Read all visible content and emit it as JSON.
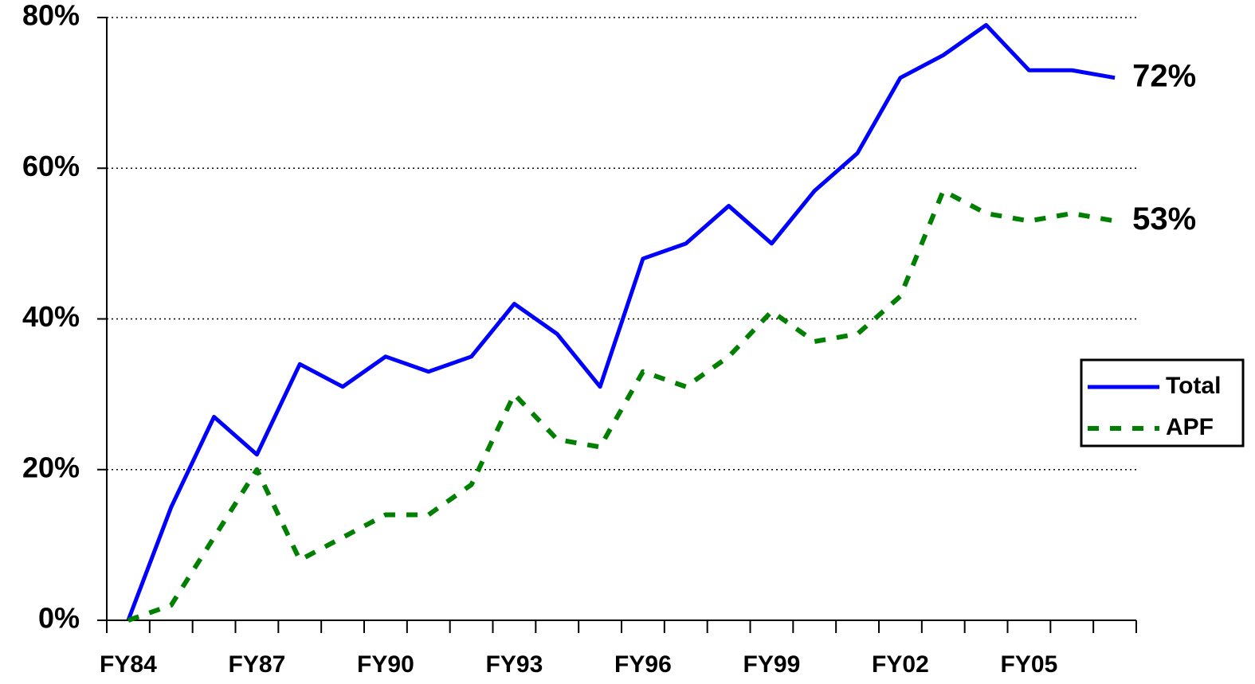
{
  "chart_data": {
    "type": "line",
    "categories": [
      "FY84",
      null,
      null,
      "FY87",
      null,
      null,
      "FY90",
      null,
      null,
      "FY93",
      null,
      null,
      "FY96",
      null,
      null,
      "FY99",
      null,
      null,
      "FY02",
      null,
      null,
      "FY05",
      null,
      null
    ],
    "series": [
      {
        "name": "Total",
        "color": "#0000ff",
        "dash": false,
        "values": [
          0,
          15,
          27,
          22,
          34,
          31,
          35,
          33,
          35,
          42,
          38,
          31,
          48,
          50,
          55,
          50,
          57,
          62,
          72,
          75,
          79,
          73,
          73,
          72
        ],
        "value_labels": [
          null,
          null,
          null,
          null,
          null,
          null,
          null,
          null,
          null,
          null,
          null,
          null,
          null,
          null,
          null,
          null,
          null,
          null,
          null,
          null,
          null,
          null,
          null,
          "72%"
        ]
      },
      {
        "name": "APF",
        "color": "#008000",
        "dash": true,
        "values": [
          0,
          2,
          11,
          20,
          8,
          11,
          14,
          14,
          18,
          30,
          24,
          23,
          33,
          31,
          35,
          41,
          37,
          38,
          43,
          57,
          54,
          53,
          54,
          53
        ],
        "value_labels": [
          null,
          null,
          null,
          null,
          null,
          null,
          null,
          null,
          null,
          null,
          null,
          null,
          null,
          null,
          null,
          null,
          null,
          null,
          null,
          null,
          null,
          null,
          null,
          "53%"
        ]
      }
    ],
    "ylim": [
      0,
      80
    ],
    "yticks": [
      {
        "value": 0,
        "label": "0%"
      },
      {
        "value": 20,
        "label": "20%"
      },
      {
        "value": 40,
        "label": "40%"
      },
      {
        "value": 60,
        "label": "60%"
      },
      {
        "value": 80,
        "label": "80%"
      }
    ],
    "grid": true,
    "legend": "right"
  }
}
